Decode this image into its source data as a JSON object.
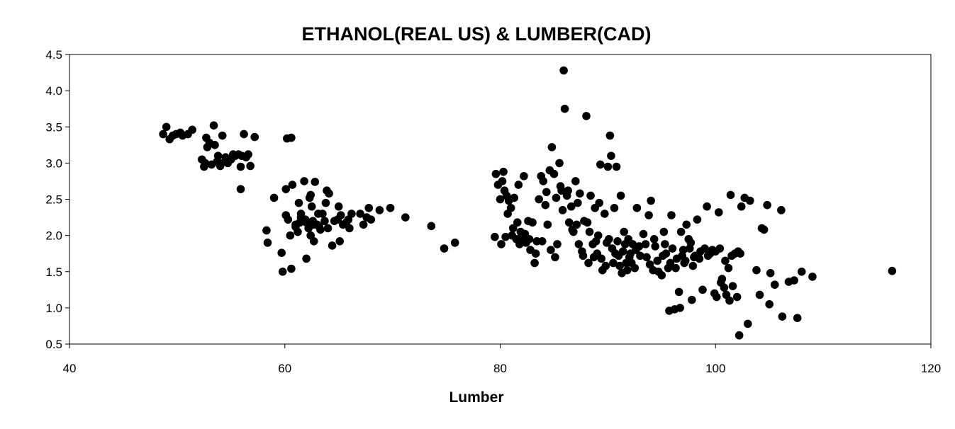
{
  "chart_data": {
    "type": "scatter",
    "title": "ETHANOL(REAL US) & LUMBER(CAD)",
    "xlabel": "Lumber",
    "ylabel": "",
    "xlim": [
      40,
      120
    ],
    "ylim": [
      0.5,
      4.5
    ],
    "x_ticks": [
      "40",
      "60",
      "80",
      "100",
      "120"
    ],
    "y_ticks": [
      "0.5",
      "1.0",
      "1.5",
      "2.0",
      "2.5",
      "3.0",
      "3.5",
      "4.0",
      "4.5"
    ],
    "grid": false,
    "marker_color": "#000000",
    "points": [
      [
        48.7,
        3.4
      ],
      [
        49.0,
        3.5
      ],
      [
        49.3,
        3.33
      ],
      [
        49.6,
        3.38
      ],
      [
        49.9,
        3.4
      ],
      [
        50.3,
        3.42
      ],
      [
        50.5,
        3.38
      ],
      [
        51.0,
        3.4
      ],
      [
        51.4,
        3.46
      ],
      [
        52.3,
        3.05
      ],
      [
        52.7,
        3.35
      ],
      [
        52.6,
        3.0
      ],
      [
        52.5,
        2.95
      ],
      [
        52.8,
        3.22
      ],
      [
        53.0,
        3.28
      ],
      [
        53.2,
        2.98
      ],
      [
        53.4,
        3.52
      ],
      [
        53.5,
        3.25
      ],
      [
        53.7,
        3.02
      ],
      [
        53.8,
        3.1
      ],
      [
        54.0,
        3.0
      ],
      [
        54.2,
        3.38
      ],
      [
        54.5,
        3.08
      ],
      [
        54.7,
        3.0
      ],
      [
        55.0,
        3.05
      ],
      [
        55.2,
        3.12
      ],
      [
        55.4,
        3.1
      ],
      [
        55.7,
        3.12
      ],
      [
        55.9,
        2.95
      ],
      [
        56.0,
        3.1
      ],
      [
        56.2,
        3.4
      ],
      [
        56.4,
        3.08
      ],
      [
        56.6,
        3.12
      ],
      [
        56.8,
        2.96
      ],
      [
        57.2,
        3.36
      ],
      [
        55.9,
        2.64
      ],
      [
        54.0,
        2.96
      ],
      [
        58.3,
        2.07
      ],
      [
        58.4,
        1.9
      ],
      [
        59.0,
        2.52
      ],
      [
        59.7,
        1.76
      ],
      [
        59.8,
        1.5
      ],
      [
        60.1,
        2.64
      ],
      [
        60.1,
        2.28
      ],
      [
        60.2,
        3.34
      ],
      [
        60.6,
        3.35
      ],
      [
        60.6,
        1.54
      ],
      [
        60.7,
        2.7
      ],
      [
        60.5,
        2.0
      ],
      [
        61.0,
        2.12
      ],
      [
        61.2,
        2.05
      ],
      [
        61.4,
        2.18
      ],
      [
        61.5,
        2.3
      ],
      [
        61.8,
        2.75
      ],
      [
        61.9,
        2.22
      ],
      [
        62.0,
        1.68
      ],
      [
        62.2,
        2.1
      ],
      [
        62.3,
        2.52
      ],
      [
        62.4,
        2.0
      ],
      [
        62.5,
        2.4
      ],
      [
        62.6,
        2.2
      ],
      [
        62.8,
        2.74
      ],
      [
        62.7,
        1.92
      ],
      [
        63.0,
        2.15
      ],
      [
        63.1,
        2.3
      ],
      [
        63.3,
        2.08
      ],
      [
        63.5,
        2.3
      ],
      [
        63.8,
        2.45
      ],
      [
        63.9,
        2.62
      ],
      [
        64.1,
        2.58
      ],
      [
        64.4,
        1.86
      ],
      [
        64.6,
        2.2
      ],
      [
        64.9,
        2.22
      ],
      [
        65.0,
        2.4
      ],
      [
        65.2,
        2.28
      ],
      [
        65.4,
        2.15
      ],
      [
        65.7,
        2.18
      ],
      [
        65.9,
        2.22
      ],
      [
        66.0,
        2.1
      ],
      [
        66.2,
        2.3
      ],
      [
        61.0,
        2.15
      ],
      [
        61.5,
        2.25
      ],
      [
        62.0,
        2.18
      ],
      [
        62.7,
        2.15
      ],
      [
        63.2,
        2.12
      ],
      [
        61.3,
        2.45
      ],
      [
        60.3,
        2.22
      ],
      [
        63.7,
        2.2
      ],
      [
        64.0,
        2.1
      ],
      [
        65.1,
        1.92
      ],
      [
        62.4,
        2.56
      ],
      [
        67.0,
        2.3
      ],
      [
        67.3,
        2.15
      ],
      [
        67.6,
        2.25
      ],
      [
        67.8,
        2.38
      ],
      [
        68.0,
        2.22
      ],
      [
        68.8,
        2.35
      ],
      [
        69.8,
        2.38
      ],
      [
        71.2,
        2.25
      ],
      [
        73.6,
        2.13
      ],
      [
        74.8,
        1.82
      ],
      [
        75.8,
        1.9
      ],
      [
        79.5,
        1.98
      ],
      [
        79.6,
        2.85
      ],
      [
        79.8,
        2.7
      ],
      [
        80.0,
        2.5
      ],
      [
        80.1,
        1.88
      ],
      [
        80.3,
        2.88
      ],
      [
        80.4,
        2.62
      ],
      [
        80.5,
        1.98
      ],
      [
        80.7,
        2.3
      ],
      [
        80.8,
        2.48
      ],
      [
        81.0,
        2.38
      ],
      [
        81.2,
        2.1
      ],
      [
        81.3,
        2.52
      ],
      [
        81.5,
        1.95
      ],
      [
        81.7,
        2.7
      ],
      [
        81.9,
        2.05
      ],
      [
        82.0,
        1.98
      ],
      [
        82.2,
        2.82
      ],
      [
        82.4,
        1.9
      ],
      [
        82.6,
        2.2
      ],
      [
        82.8,
        1.8
      ],
      [
        83.0,
        2.18
      ],
      [
        83.2,
        1.62
      ],
      [
        83.4,
        1.92
      ],
      [
        83.6,
        2.5
      ],
      [
        83.8,
        2.82
      ],
      [
        84.0,
        2.75
      ],
      [
        84.2,
        2.42
      ],
      [
        84.4,
        2.15
      ],
      [
        84.6,
        2.9
      ],
      [
        84.8,
        3.22
      ],
      [
        85.0,
        2.85
      ],
      [
        85.1,
        1.7
      ],
      [
        85.3,
        1.88
      ],
      [
        85.5,
        3.0
      ],
      [
        85.7,
        2.62
      ],
      [
        85.8,
        2.35
      ],
      [
        85.9,
        4.28
      ],
      [
        86.0,
        3.75
      ],
      [
        86.2,
        2.55
      ],
      [
        86.4,
        2.18
      ],
      [
        86.6,
        2.4
      ],
      [
        86.8,
        2.05
      ],
      [
        87.0,
        2.75
      ],
      [
        87.2,
        2.45
      ],
      [
        87.4,
        2.58
      ],
      [
        87.6,
        1.78
      ],
      [
        87.8,
        2.2
      ],
      [
        88.0,
        3.65
      ],
      [
        88.1,
        2.18
      ],
      [
        88.2,
        1.62
      ],
      [
        88.4,
        2.55
      ],
      [
        88.6,
        1.88
      ],
      [
        88.8,
        2.38
      ],
      [
        89.0,
        1.75
      ],
      [
        89.2,
        2.45
      ],
      [
        89.3,
        2.98
      ],
      [
        89.5,
        1.52
      ],
      [
        89.7,
        2.3
      ],
      [
        89.9,
        1.9
      ],
      [
        90.0,
        2.95
      ],
      [
        90.2,
        3.38
      ],
      [
        90.3,
        3.1
      ],
      [
        90.4,
        1.82
      ],
      [
        90.6,
        2.38
      ],
      [
        90.8,
        2.95
      ],
      [
        91.0,
        1.72
      ],
      [
        91.2,
        2.55
      ],
      [
        91.3,
        1.48
      ],
      [
        91.5,
        2.05
      ],
      [
        91.7,
        1.62
      ],
      [
        91.9,
        1.95
      ],
      [
        92.1,
        1.75
      ],
      [
        92.3,
        1.88
      ],
      [
        92.5,
        1.55
      ],
      [
        92.7,
        2.38
      ],
      [
        92.9,
        1.85
      ],
      [
        93.3,
        2.02
      ],
      [
        93.6,
        1.7
      ],
      [
        93.8,
        2.28
      ],
      [
        94.0,
        2.48
      ],
      [
        94.2,
        1.52
      ],
      [
        94.4,
        1.85
      ],
      [
        94.6,
        1.65
      ],
      [
        95.0,
        1.45
      ],
      [
        95.2,
        2.05
      ],
      [
        95.4,
        1.75
      ],
      [
        95.6,
        1.55
      ],
      [
        95.7,
        0.96
      ],
      [
        95.9,
        2.28
      ],
      [
        96.2,
        0.98
      ],
      [
        96.4,
        1.68
      ],
      [
        96.6,
        1.22
      ],
      [
        96.7,
        1.0
      ],
      [
        96.8,
        2.05
      ],
      [
        97.0,
        1.8
      ],
      [
        97.1,
        1.62
      ],
      [
        97.3,
        2.15
      ],
      [
        97.5,
        1.95
      ],
      [
        97.7,
        1.9
      ],
      [
        97.8,
        1.11
      ],
      [
        98.0,
        1.7
      ],
      [
        98.3,
        2.22
      ],
      [
        98.6,
        1.78
      ],
      [
        98.8,
        1.25
      ],
      [
        99.2,
        2.4
      ],
      [
        99.5,
        1.75
      ],
      [
        99.9,
        1.2
      ],
      [
        100.1,
        1.15
      ],
      [
        100.3,
        2.32
      ],
      [
        100.5,
        1.35
      ],
      [
        100.6,
        1.4
      ],
      [
        100.8,
        1.28
      ],
      [
        101.0,
        1.18
      ],
      [
        101.2,
        1.55
      ],
      [
        101.3,
        1.1
      ],
      [
        101.4,
        2.56
      ],
      [
        101.6,
        1.3
      ],
      [
        101.8,
        1.75
      ],
      [
        102.0,
        1.15
      ],
      [
        102.1,
        1.78
      ],
      [
        102.2,
        0.62
      ],
      [
        102.4,
        2.4
      ],
      [
        102.7,
        2.52
      ],
      [
        103.0,
        0.78
      ],
      [
        103.2,
        2.48
      ],
      [
        103.8,
        1.52
      ],
      [
        104.1,
        1.18
      ],
      [
        104.3,
        2.1
      ],
      [
        104.5,
        2.08
      ],
      [
        104.8,
        2.42
      ],
      [
        105.0,
        1.05
      ],
      [
        105.1,
        1.48
      ],
      [
        105.5,
        1.32
      ],
      [
        106.1,
        2.35
      ],
      [
        106.2,
        0.88
      ],
      [
        106.8,
        1.36
      ],
      [
        107.3,
        1.38
      ],
      [
        107.6,
        0.86
      ],
      [
        108.0,
        1.5
      ],
      [
        109.0,
        1.43
      ],
      [
        116.4,
        1.51
      ],
      [
        80.2,
        2.75
      ],
      [
        80.6,
        2.55
      ],
      [
        81.1,
        2.0
      ],
      [
        81.6,
        2.18
      ],
      [
        81.8,
        1.88
      ],
      [
        82.3,
        2.02
      ],
      [
        82.7,
        1.95
      ],
      [
        83.3,
        1.75
      ],
      [
        83.9,
        1.92
      ],
      [
        84.3,
        2.6
      ],
      [
        84.7,
        1.8
      ],
      [
        85.2,
        2.52
      ],
      [
        85.6,
        2.68
      ],
      [
        86.3,
        2.62
      ],
      [
        86.7,
        2.08
      ],
      [
        87.1,
        2.15
      ],
      [
        87.3,
        1.88
      ],
      [
        87.7,
        1.72
      ],
      [
        88.3,
        2.05
      ],
      [
        88.7,
        1.7
      ],
      [
        88.9,
        1.92
      ],
      [
        89.1,
        2.0
      ],
      [
        89.4,
        1.68
      ],
      [
        89.8,
        1.58
      ],
      [
        90.1,
        1.95
      ],
      [
        90.5,
        1.62
      ],
      [
        90.7,
        1.75
      ],
      [
        90.9,
        1.92
      ],
      [
        91.1,
        1.58
      ],
      [
        91.4,
        1.78
      ],
      [
        91.6,
        1.88
      ],
      [
        91.8,
        1.52
      ],
      [
        92.0,
        1.7
      ],
      [
        92.2,
        1.62
      ],
      [
        92.6,
        1.8
      ],
      [
        93.0,
        1.72
      ],
      [
        93.5,
        1.88
      ],
      [
        93.9,
        1.6
      ],
      [
        94.3,
        1.95
      ],
      [
        94.7,
        1.5
      ],
      [
        95.1,
        1.72
      ],
      [
        95.3,
        1.88
      ],
      [
        95.8,
        1.62
      ],
      [
        96.0,
        1.82
      ],
      [
        96.3,
        1.55
      ],
      [
        96.9,
        1.72
      ],
      [
        97.2,
        1.65
      ],
      [
        97.6,
        1.82
      ],
      [
        97.9,
        1.58
      ],
      [
        98.1,
        1.72
      ],
      [
        98.5,
        1.68
      ],
      [
        99.0,
        1.82
      ],
      [
        99.3,
        1.72
      ],
      [
        99.7,
        1.8
      ],
      [
        100.0,
        1.78
      ],
      [
        100.4,
        1.82
      ],
      [
        100.9,
        1.65
      ],
      [
        101.5,
        1.72
      ],
      [
        102.3,
        1.75
      ]
    ]
  }
}
